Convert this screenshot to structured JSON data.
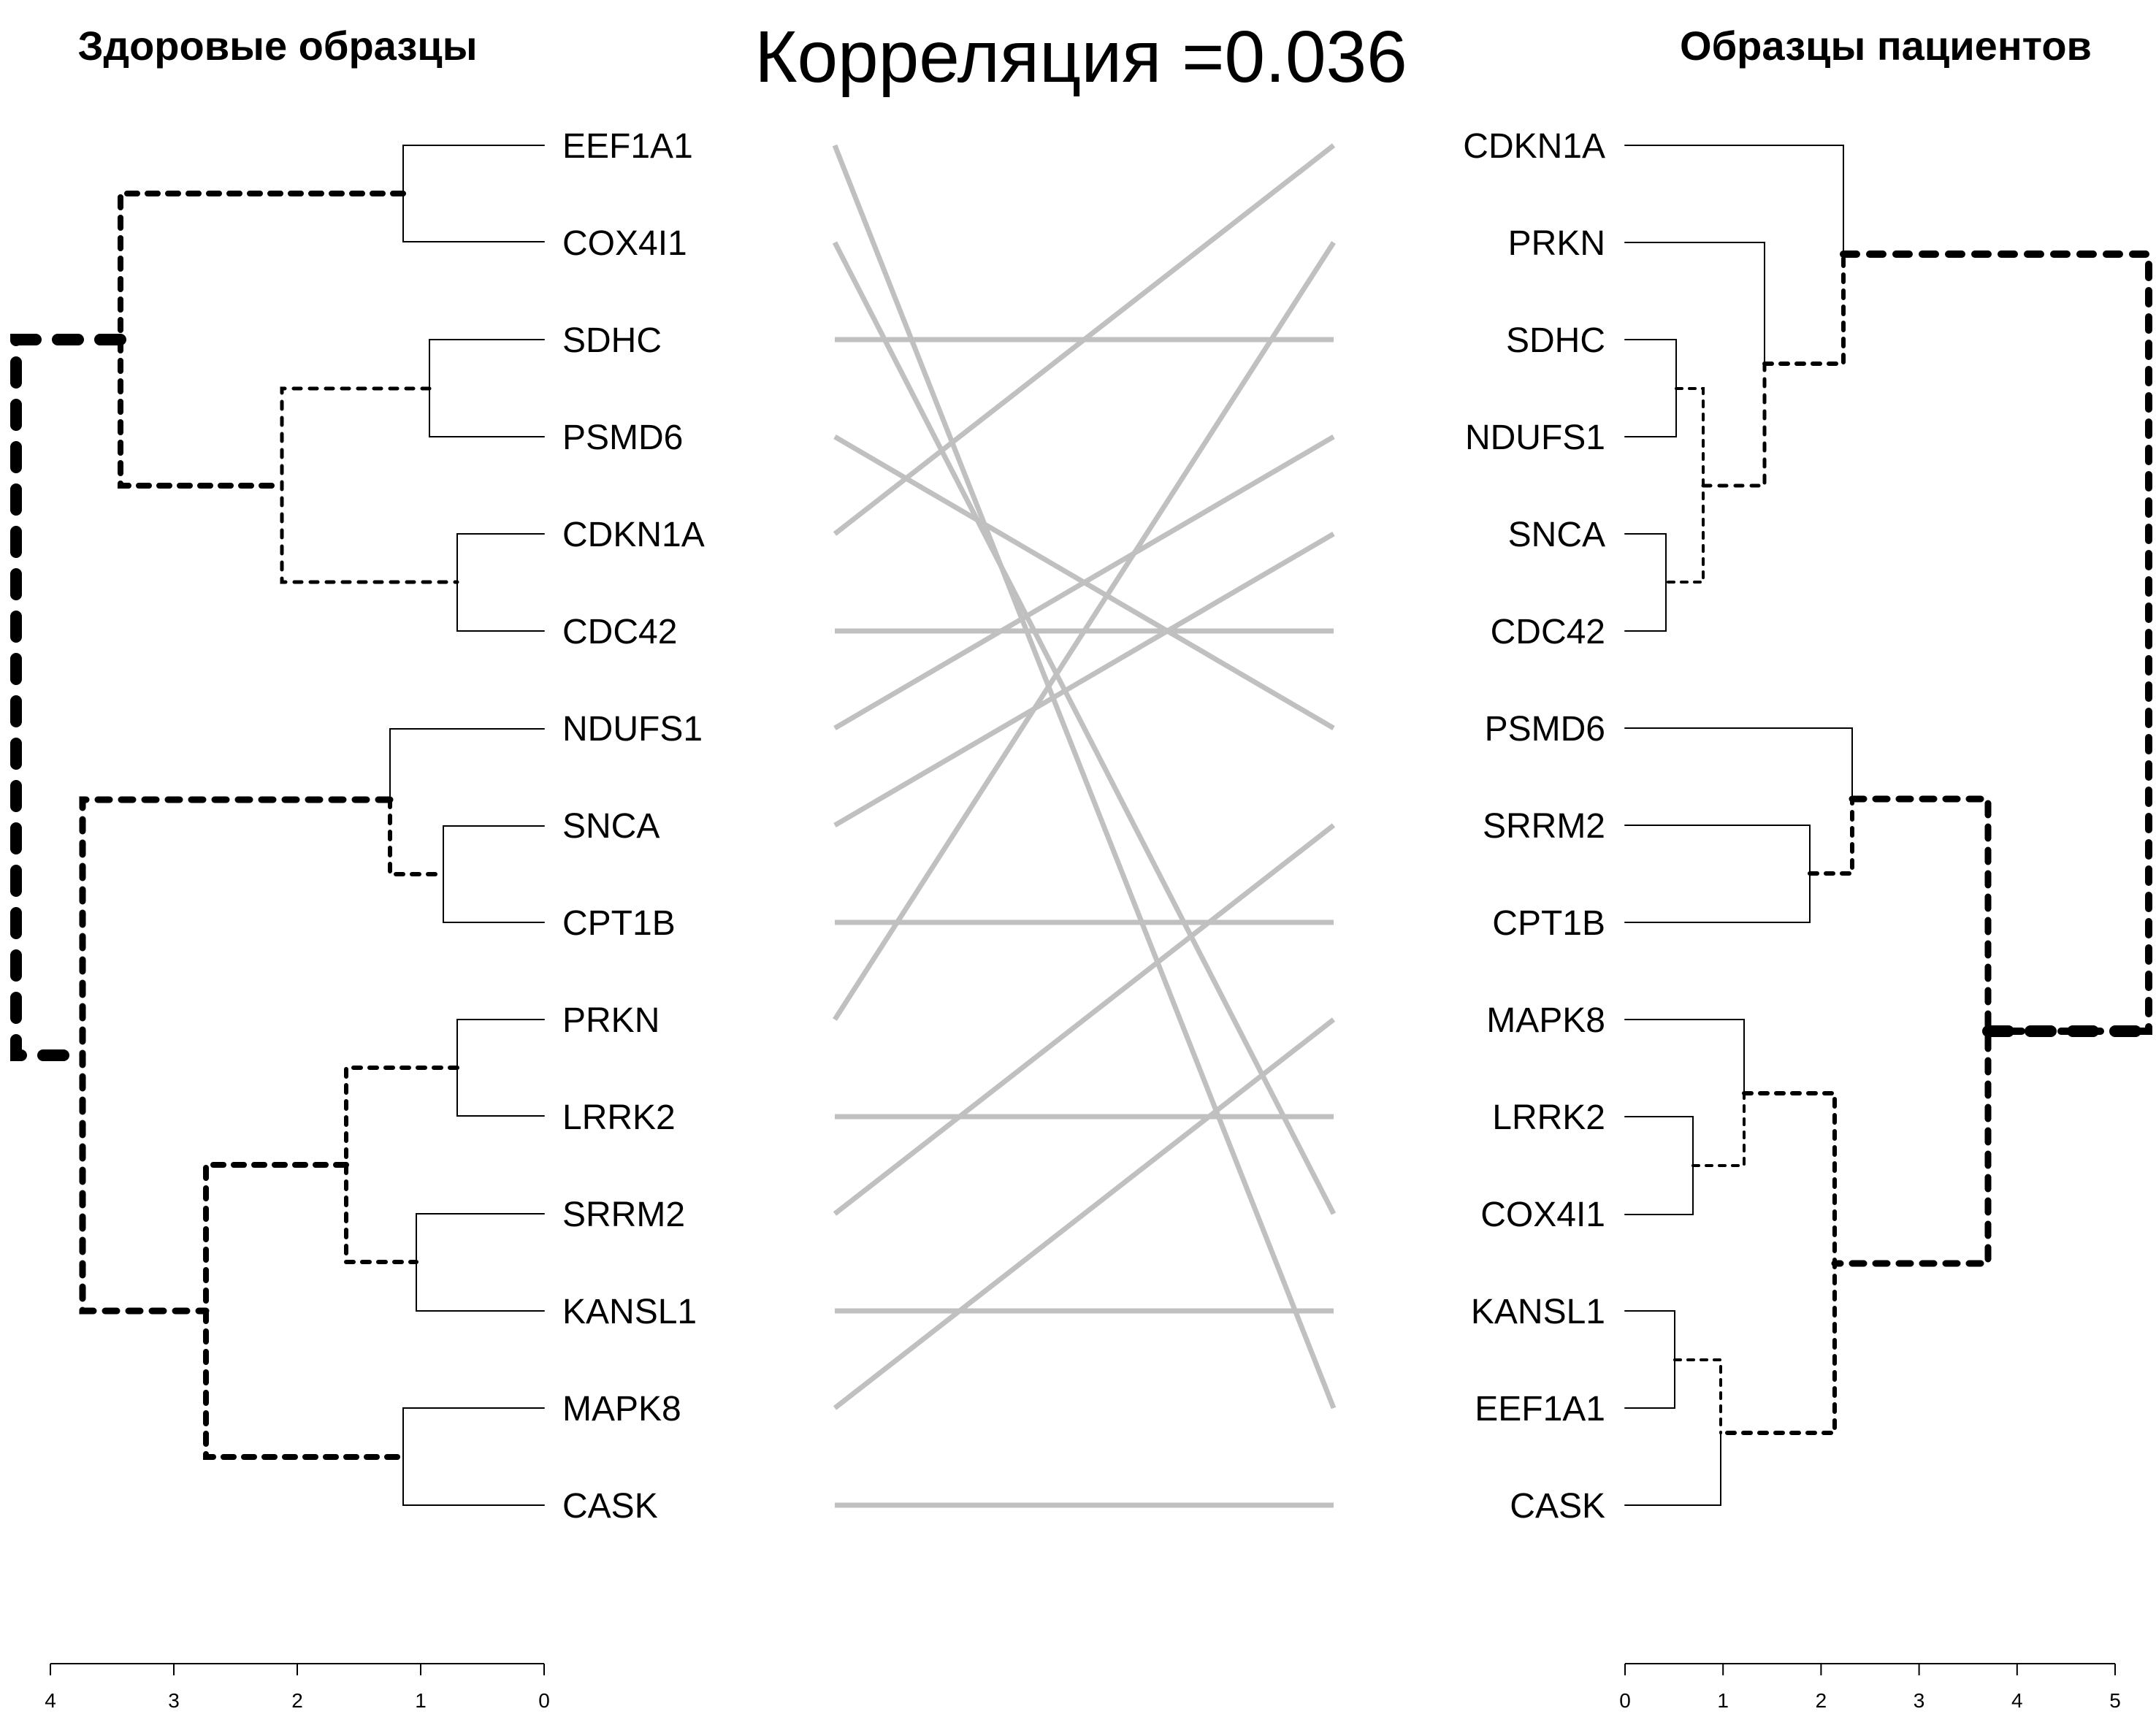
{
  "title": "Корреляция =0.036",
  "left": {
    "title": "Здоровые образцы",
    "leaves": [
      "EEF1A1",
      "COX4I1",
      "SDHC",
      "PSMD6",
      "CDKN1A",
      "CDC42",
      "NDUFS1",
      "SNCA",
      "CPT1B",
      "PRKN",
      "LRRK2",
      "SRRM2",
      "KANSL1",
      "MAPK8",
      "CASK"
    ],
    "axis": {
      "ticks": [
        "4",
        "3",
        "2",
        "1",
        "0"
      ],
      "range": [
        4,
        0
      ]
    }
  },
  "right": {
    "title": "Образцы пациентов",
    "leaves": [
      "CDKN1A",
      "PRKN",
      "SDHC",
      "NDUFS1",
      "SNCA",
      "CDC42",
      "PSMD6",
      "SRRM2",
      "CPT1B",
      "MAPK8",
      "LRRK2",
      "COX4I1",
      "KANSL1",
      "EEF1A1",
      "CASK"
    ],
    "axis": {
      "ticks": [
        "0",
        "1",
        "2",
        "3",
        "4",
        "5"
      ],
      "range": [
        0,
        5
      ]
    }
  },
  "colors": {
    "connector": "#c0c0c0",
    "tree": "#000000"
  }
}
